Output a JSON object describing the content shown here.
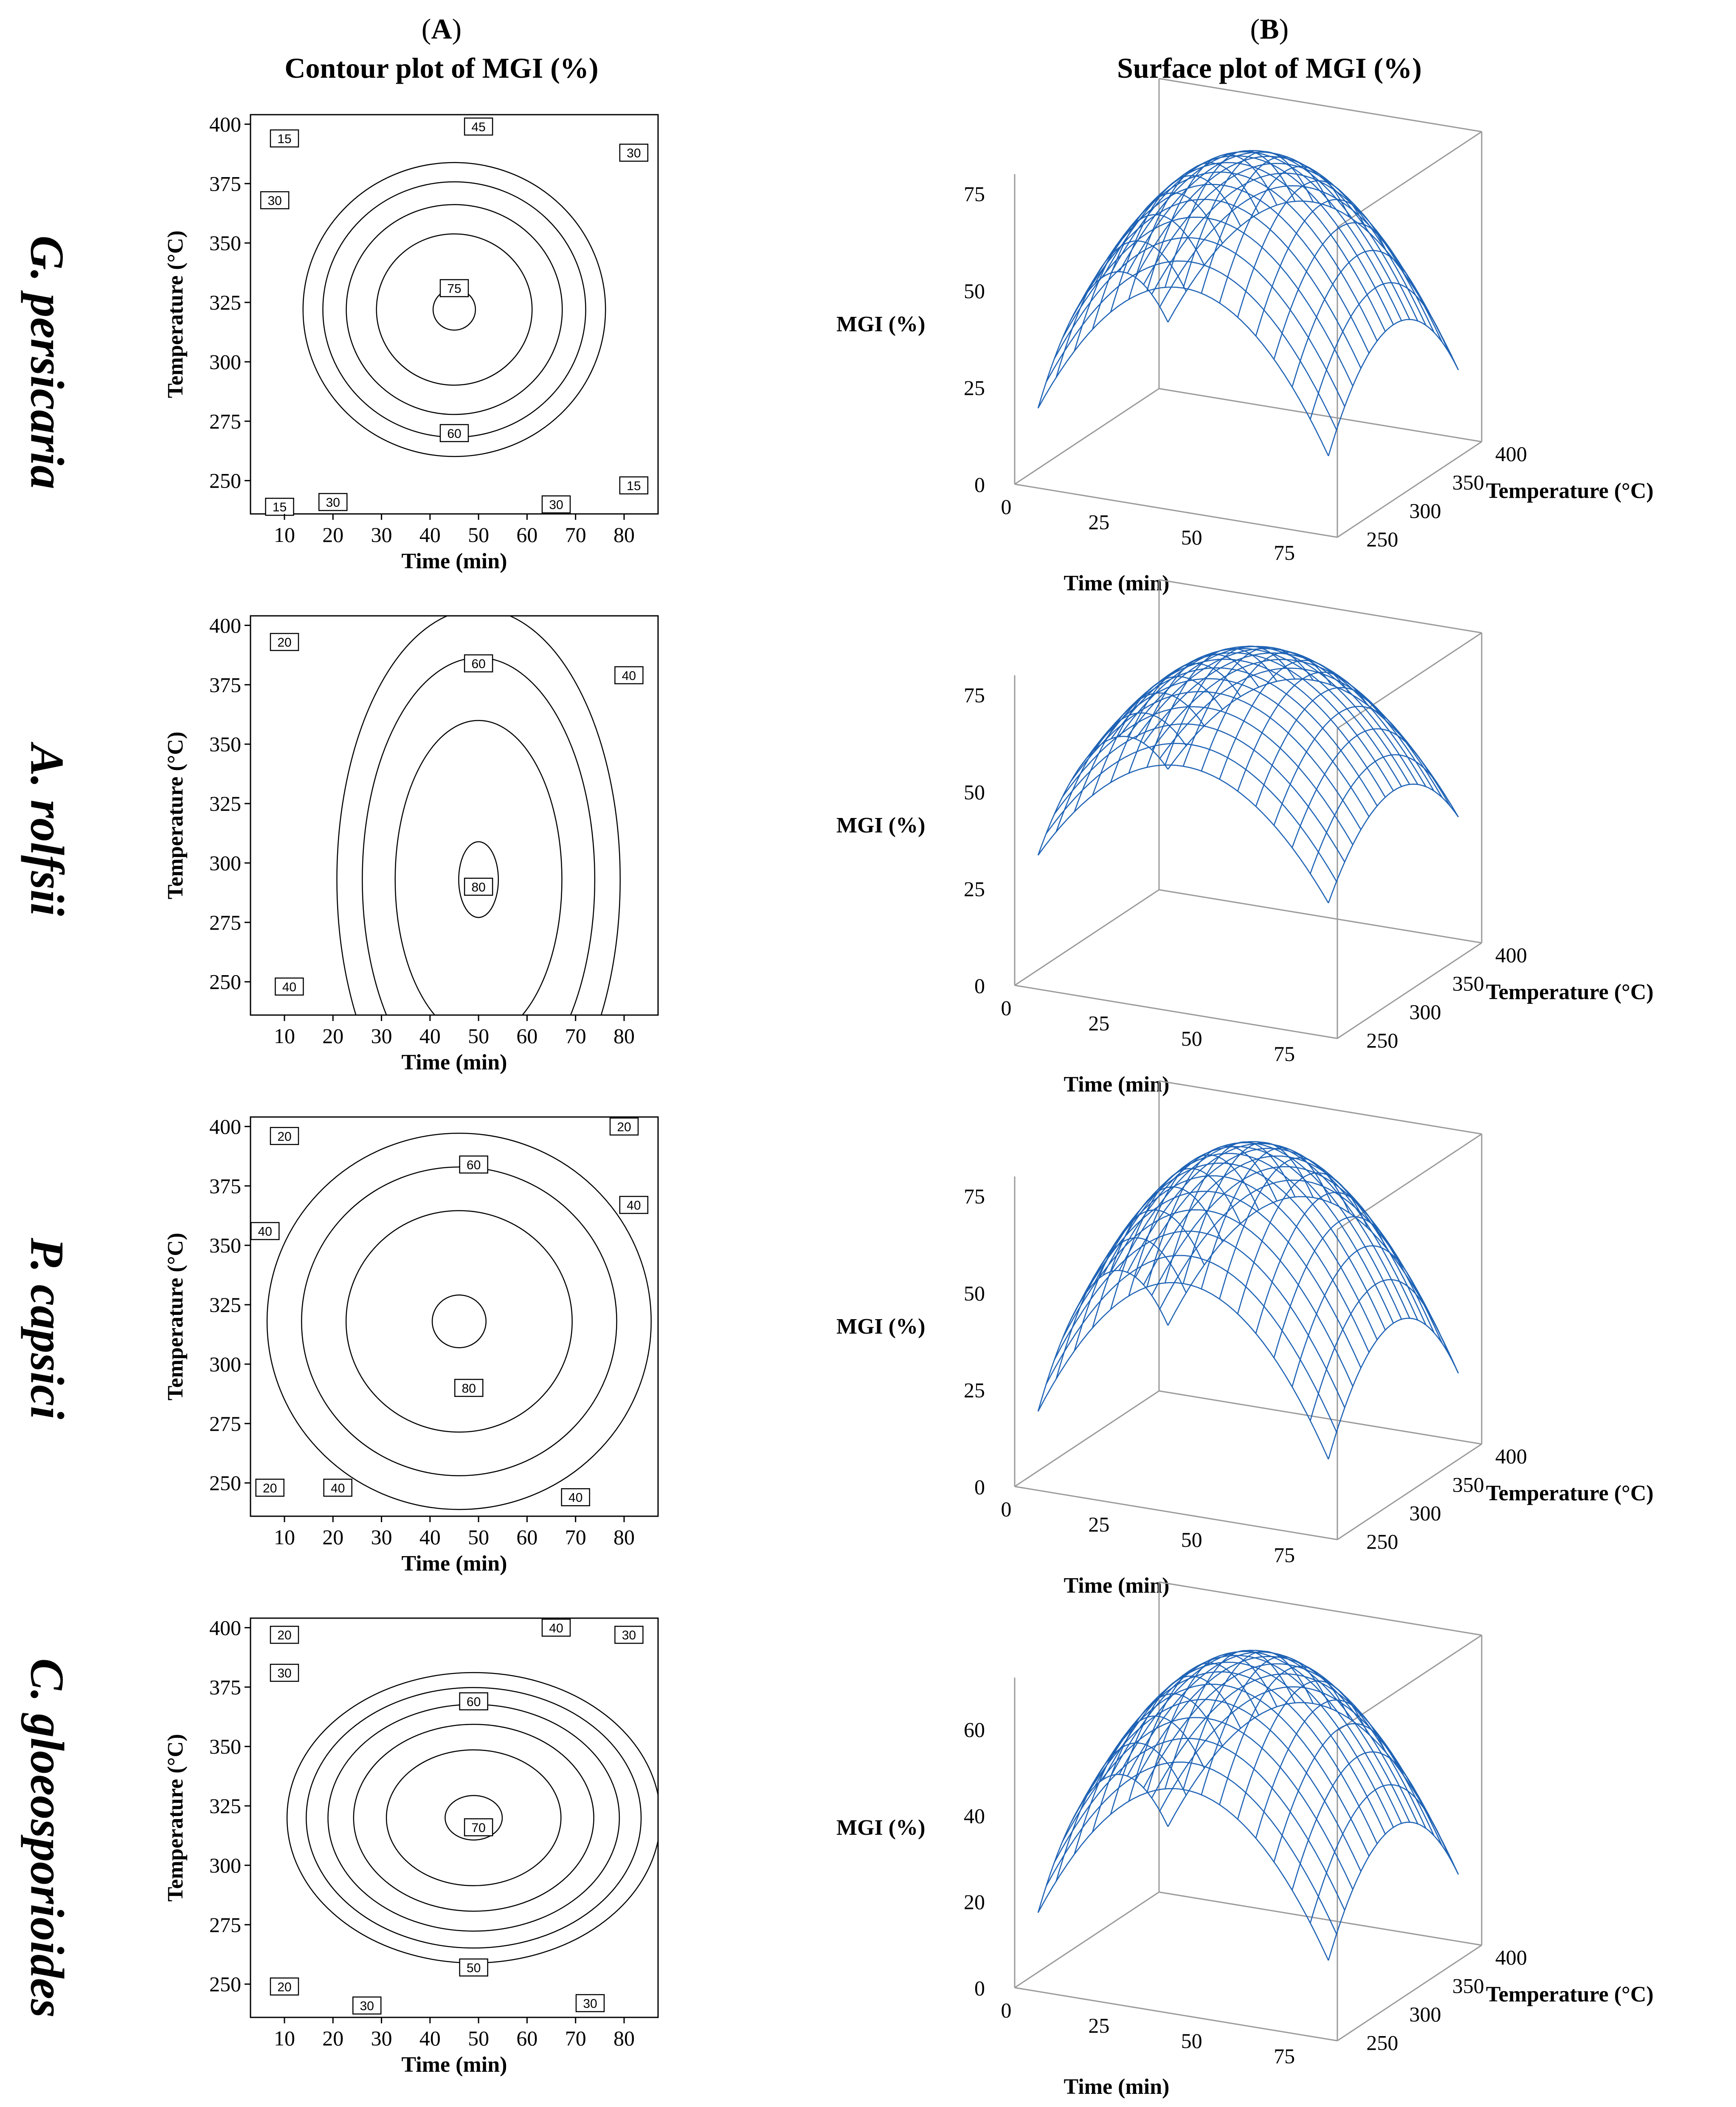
{
  "columns": {
    "a": {
      "letter": "A",
      "title": "Contour plot of MGI (%)"
    },
    "b": {
      "letter": "B",
      "title": "Surface plot of MGI (%)"
    }
  },
  "chart_data": [
    {
      "organism": "G. persicaria",
      "contour": {
        "type": "contour",
        "xlabel": "Time (min)",
        "ylabel": "Temperature (°C)",
        "xlim": [
          3,
          87
        ],
        "ylim": [
          236,
          404
        ],
        "xticks": [
          10,
          20,
          30,
          40,
          50,
          60,
          70,
          80
        ],
        "yticks": [
          250,
          275,
          300,
          325,
          350,
          375,
          400
        ],
        "center": [
          45,
          322
        ],
        "rx_per_10": 12.6,
        "ry_per_10": 25.0,
        "levels": [
          75,
          60,
          45,
          30,
          15
        ],
        "labels": [
          {
            "text": "15",
            "x": 10,
            "y": 394
          },
          {
            "text": "30",
            "x": 8,
            "y": 368
          },
          {
            "text": "45",
            "x": 50,
            "y": 399
          },
          {
            "text": "30",
            "x": 82,
            "y": 388
          },
          {
            "text": "75",
            "x": 45,
            "y": 331
          },
          {
            "text": "60",
            "x": 45,
            "y": 270
          },
          {
            "text": "15",
            "x": 9,
            "y": 239
          },
          {
            "text": "30",
            "x": 20,
            "y": 241
          },
          {
            "text": "30",
            "x": 66,
            "y": 240
          },
          {
            "text": "15",
            "x": 82,
            "y": 248
          }
        ]
      },
      "surface": {
        "type": "surface",
        "zlabel": "MGI (%)",
        "xlabel": "Time (min)",
        "ylabel": "Temperature (°C)",
        "zticks": [
          0,
          25,
          50,
          75
        ],
        "xticks": [
          0,
          25,
          50,
          75
        ],
        "yticks": [
          250,
          300,
          350,
          400
        ],
        "zmax": 80,
        "peak": 79,
        "edge": 5
      }
    },
    {
      "organism": "A. rolfsii",
      "contour": {
        "type": "contour",
        "xlabel": "Time (min)",
        "ylabel": "Temperature (°C)",
        "xlim": [
          3,
          87
        ],
        "ylim": [
          236,
          404
        ],
        "xticks": [
          10,
          20,
          30,
          40,
          50,
          60,
          70,
          80
        ],
        "yticks": [
          250,
          275,
          300,
          325,
          350,
          375,
          400
        ],
        "center": [
          50,
          293
        ],
        "rx_per_10": 11.8,
        "ry_per_10": 46.0,
        "levels": [
          80,
          60,
          40,
          20
        ],
        "labels": [
          {
            "text": "20",
            "x": 10,
            "y": 393
          },
          {
            "text": "60",
            "x": 50,
            "y": 384
          },
          {
            "text": "40",
            "x": 81,
            "y": 379
          },
          {
            "text": "80",
            "x": 50,
            "y": 290
          },
          {
            "text": "40",
            "x": 11,
            "y": 248
          }
        ]
      },
      "surface": {
        "type": "surface",
        "zlabel": "MGI (%)",
        "xlabel": "Time (min)",
        "ylabel": "Temperature (°C)",
        "zticks": [
          0,
          25,
          50,
          75
        ],
        "xticks": [
          0,
          25,
          50,
          75
        ],
        "yticks": [
          250,
          300,
          350,
          400
        ],
        "zmax": 80,
        "peak": 80,
        "edge": 22
      }
    },
    {
      "organism": "P. capsici",
      "contour": {
        "type": "contour",
        "xlabel": "Time (min)",
        "ylabel": "Temperature (°C)",
        "xlim": [
          3,
          87
        ],
        "ylim": [
          236,
          404
        ],
        "xticks": [
          10,
          20,
          30,
          40,
          50,
          60,
          70,
          80
        ],
        "yticks": [
          250,
          275,
          300,
          325,
          350,
          375,
          400
        ],
        "center": [
          46,
          318
        ],
        "rx_per_10": 16.0,
        "ry_per_10": 32.0,
        "levels": [
          80,
          60,
          40,
          20
        ],
        "labels": [
          {
            "text": "20",
            "x": 10,
            "y": 396
          },
          {
            "text": "60",
            "x": 49,
            "y": 384
          },
          {
            "text": "20",
            "x": 80,
            "y": 400
          },
          {
            "text": "40",
            "x": 82,
            "y": 367
          },
          {
            "text": "40",
            "x": 6,
            "y": 356
          },
          {
            "text": "80",
            "x": 48,
            "y": 290
          },
          {
            "text": "20",
            "x": 7,
            "y": 248
          },
          {
            "text": "40",
            "x": 21,
            "y": 248
          },
          {
            "text": "40",
            "x": 70,
            "y": 244
          }
        ]
      },
      "surface": {
        "type": "surface",
        "zlabel": "MGI (%)",
        "xlabel": "Time (min)",
        "ylabel": "Temperature (°C)",
        "zticks": [
          0,
          25,
          50,
          75
        ],
        "xticks": [
          0,
          25,
          50,
          75
        ],
        "yticks": [
          250,
          300,
          350,
          400
        ],
        "zmax": 80,
        "peak": 82,
        "edge": 4
      }
    },
    {
      "organism": "C. gloeosporioides",
      "contour": {
        "type": "contour",
        "xlabel": "Time (min)",
        "ylabel": "Temperature (°C)",
        "xlim": [
          3,
          87
        ],
        "ylim": [
          236,
          404
        ],
        "xticks": [
          10,
          20,
          30,
          40,
          50,
          60,
          70,
          80
        ],
        "yticks": [
          250,
          275,
          300,
          325,
          350,
          375,
          400
        ],
        "center": [
          49,
          320
        ],
        "rx_per_10": 17.0,
        "ry_per_10": 27.0,
        "levels": [
          70,
          60,
          50,
          40,
          30,
          20
        ],
        "labels": [
          {
            "text": "20",
            "x": 10,
            "y": 397
          },
          {
            "text": "40",
            "x": 66,
            "y": 400
          },
          {
            "text": "30",
            "x": 81,
            "y": 397
          },
          {
            "text": "30",
            "x": 10,
            "y": 381
          },
          {
            "text": "60",
            "x": 49,
            "y": 369
          },
          {
            "text": "70",
            "x": 50,
            "y": 316
          },
          {
            "text": "50",
            "x": 49,
            "y": 257
          },
          {
            "text": "20",
            "x": 10,
            "y": 249
          },
          {
            "text": "30",
            "x": 27,
            "y": 241
          },
          {
            "text": "30",
            "x": 73,
            "y": 242
          }
        ]
      },
      "surface": {
        "type": "surface",
        "zlabel": "MGI (%)",
        "xlabel": "Time (min)",
        "ylabel": "Temperature (°C)",
        "zticks": [
          0,
          20,
          40,
          60
        ],
        "xticks": [
          0,
          25,
          50,
          75
        ],
        "yticks": [
          250,
          300,
          350,
          400
        ],
        "zmax": 72,
        "peak": 72,
        "edge": 4
      }
    }
  ],
  "colors": {
    "mesh": "#1f63b5",
    "box": "#9a9a9a",
    "line": "#000000"
  }
}
